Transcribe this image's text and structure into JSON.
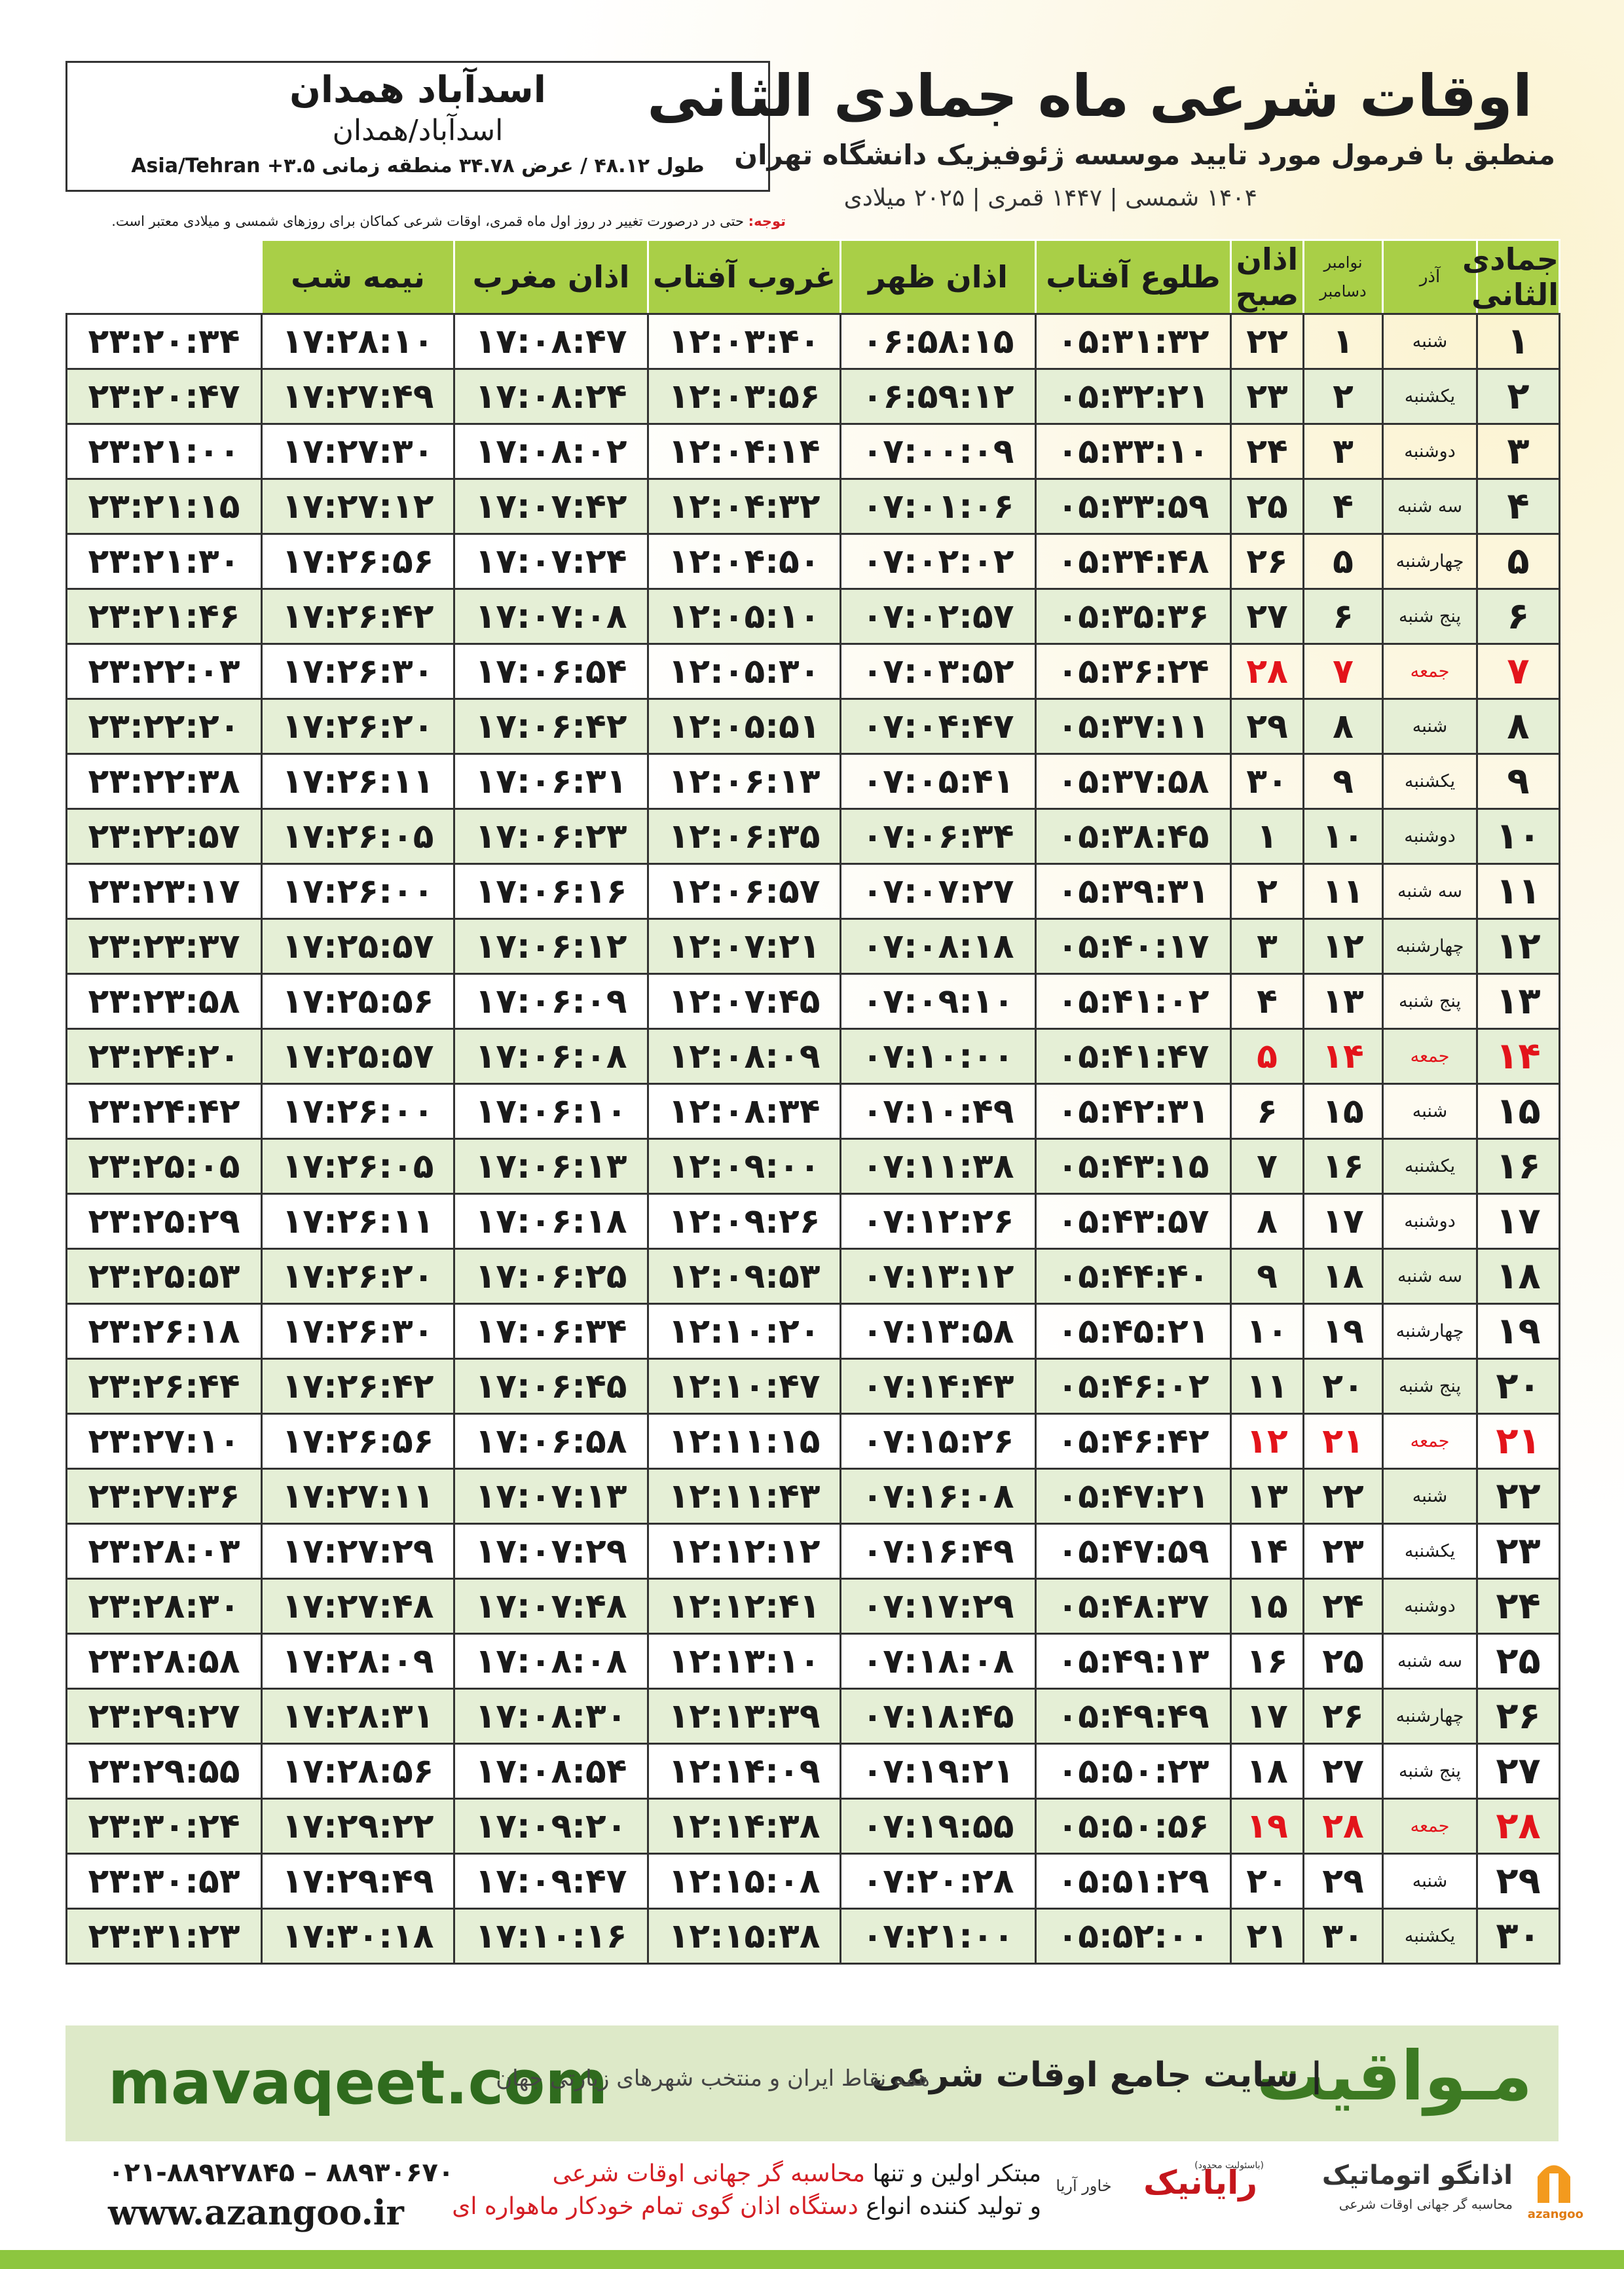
{
  "header": {
    "city": "اسدآباد همدان",
    "region": "اسدآباد/همدان",
    "coordinates": "طول ۴۸.۱۲ / عرض ۳۴.۷۸ منطقه زمانی ۳.۵+ Asia/Tehran",
    "title": "اوقات شرعی ماه جمادی الثانی",
    "subtitle": "منطبق با فرمول مورد تایید موسسه ژئوفیزیک دانشگاه تهران",
    "years": "۱۴۰۴ شمسی | ۱۴۴۷ قمری | ۲۰۲۵ میلادی"
  },
  "note": {
    "label": "توجه:",
    "text": "حتی در درصورت تغییر در روز اول ماه قمری، اوقات شرعی کماکان برای روزهای شمسی و میلادی معتبر است."
  },
  "table": {
    "columns": [
      "جمادی الثانی",
      "آذر",
      [
        "نوامبر",
        "دسامبر"
      ],
      "اذان صبح",
      "طلوع آفتاب",
      "اذان ظهر",
      "غروب آفتاب",
      "اذان مغرب",
      "نیمه شب"
    ],
    "rows": [
      [
        "۱",
        "شنبه",
        "۱",
        "۲۲",
        "۰۵:۳۱:۳۲",
        "۰۶:۵۸:۱۵",
        "۱۲:۰۳:۴۰",
        "۱۷:۰۸:۴۷",
        "۱۷:۲۸:۱۰",
        "۲۳:۲۰:۳۴"
      ],
      [
        "۲",
        "یکشنبه",
        "۲",
        "۲۳",
        "۰۵:۳۲:۲۱",
        "۰۶:۵۹:۱۲",
        "۱۲:۰۳:۵۶",
        "۱۷:۰۸:۲۴",
        "۱۷:۲۷:۴۹",
        "۲۳:۲۰:۴۷"
      ],
      [
        "۳",
        "دوشنبه",
        "۳",
        "۲۴",
        "۰۵:۳۳:۱۰",
        "۰۷:۰۰:۰۹",
        "۱۲:۰۴:۱۴",
        "۱۷:۰۸:۰۲",
        "۱۷:۲۷:۳۰",
        "۲۳:۲۱:۰۰"
      ],
      [
        "۴",
        "سه شنبه",
        "۴",
        "۲۵",
        "۰۵:۳۳:۵۹",
        "۰۷:۰۱:۰۶",
        "۱۲:۰۴:۳۲",
        "۱۷:۰۷:۴۲",
        "۱۷:۲۷:۱۲",
        "۲۳:۲۱:۱۵"
      ],
      [
        "۵",
        "چهارشنبه",
        "۵",
        "۲۶",
        "۰۵:۳۴:۴۸",
        "۰۷:۰۲:۰۲",
        "۱۲:۰۴:۵۰",
        "۱۷:۰۷:۲۴",
        "۱۷:۲۶:۵۶",
        "۲۳:۲۱:۳۰"
      ],
      [
        "۶",
        "پنج شنبه",
        "۶",
        "۲۷",
        "۰۵:۳۵:۳۶",
        "۰۷:۰۲:۵۷",
        "۱۲:۰۵:۱۰",
        "۱۷:۰۷:۰۸",
        "۱۷:۲۶:۴۲",
        "۲۳:۲۱:۴۶"
      ],
      [
        "۷",
        "جمعه",
        "۷",
        "۲۸",
        "۰۵:۳۶:۲۴",
        "۰۷:۰۳:۵۲",
        "۱۲:۰۵:۳۰",
        "۱۷:۰۶:۵۴",
        "۱۷:۲۶:۳۰",
        "۲۳:۲۲:۰۳"
      ],
      [
        "۸",
        "شنبه",
        "۸",
        "۲۹",
        "۰۵:۳۷:۱۱",
        "۰۷:۰۴:۴۷",
        "۱۲:۰۵:۵۱",
        "۱۷:۰۶:۴۲",
        "۱۷:۲۶:۲۰",
        "۲۳:۲۲:۲۰"
      ],
      [
        "۹",
        "یکشنبه",
        "۹",
        "۳۰",
        "۰۵:۳۷:۵۸",
        "۰۷:۰۵:۴۱",
        "۱۲:۰۶:۱۳",
        "۱۷:۰۶:۳۱",
        "۱۷:۲۶:۱۱",
        "۲۳:۲۲:۳۸"
      ],
      [
        "۱۰",
        "دوشنبه",
        "۱۰",
        "۱",
        "۰۵:۳۸:۴۵",
        "۰۷:۰۶:۳۴",
        "۱۲:۰۶:۳۵",
        "۱۷:۰۶:۲۳",
        "۱۷:۲۶:۰۵",
        "۲۳:۲۲:۵۷"
      ],
      [
        "۱۱",
        "سه شنبه",
        "۱۱",
        "۲",
        "۰۵:۳۹:۳۱",
        "۰۷:۰۷:۲۷",
        "۱۲:۰۶:۵۷",
        "۱۷:۰۶:۱۶",
        "۱۷:۲۶:۰۰",
        "۲۳:۲۳:۱۷"
      ],
      [
        "۱۲",
        "چهارشنبه",
        "۱۲",
        "۳",
        "۰۵:۴۰:۱۷",
        "۰۷:۰۸:۱۸",
        "۱۲:۰۷:۲۱",
        "۱۷:۰۶:۱۲",
        "۱۷:۲۵:۵۷",
        "۲۳:۲۳:۳۷"
      ],
      [
        "۱۳",
        "پنج شنبه",
        "۱۳",
        "۴",
        "۰۵:۴۱:۰۲",
        "۰۷:۰۹:۱۰",
        "۱۲:۰۷:۴۵",
        "۱۷:۰۶:۰۹",
        "۱۷:۲۵:۵۶",
        "۲۳:۲۳:۵۸"
      ],
      [
        "۱۴",
        "جمعه",
        "۱۴",
        "۵",
        "۰۵:۴۱:۴۷",
        "۰۷:۱۰:۰۰",
        "۱۲:۰۸:۰۹",
        "۱۷:۰۶:۰۸",
        "۱۷:۲۵:۵۷",
        "۲۳:۲۴:۲۰"
      ],
      [
        "۱۵",
        "شنبه",
        "۱۵",
        "۶",
        "۰۵:۴۲:۳۱",
        "۰۷:۱۰:۴۹",
        "۱۲:۰۸:۳۴",
        "۱۷:۰۶:۱۰",
        "۱۷:۲۶:۰۰",
        "۲۳:۲۴:۴۲"
      ],
      [
        "۱۶",
        "یکشنبه",
        "۱۶",
        "۷",
        "۰۵:۴۳:۱۵",
        "۰۷:۱۱:۳۸",
        "۱۲:۰۹:۰۰",
        "۱۷:۰۶:۱۳",
        "۱۷:۲۶:۰۵",
        "۲۳:۲۵:۰۵"
      ],
      [
        "۱۷",
        "دوشنبه",
        "۱۷",
        "۸",
        "۰۵:۴۳:۵۷",
        "۰۷:۱۲:۲۶",
        "۱۲:۰۹:۲۶",
        "۱۷:۰۶:۱۸",
        "۱۷:۲۶:۱۱",
        "۲۳:۲۵:۲۹"
      ],
      [
        "۱۸",
        "سه شنبه",
        "۱۸",
        "۹",
        "۰۵:۴۴:۴۰",
        "۰۷:۱۳:۱۲",
        "۱۲:۰۹:۵۳",
        "۱۷:۰۶:۲۵",
        "۱۷:۲۶:۲۰",
        "۲۳:۲۵:۵۳"
      ],
      [
        "۱۹",
        "چهارشنبه",
        "۱۹",
        "۱۰",
        "۰۵:۴۵:۲۱",
        "۰۷:۱۳:۵۸",
        "۱۲:۱۰:۲۰",
        "۱۷:۰۶:۳۴",
        "۱۷:۲۶:۳۰",
        "۲۳:۲۶:۱۸"
      ],
      [
        "۲۰",
        "پنج شنبه",
        "۲۰",
        "۱۱",
        "۰۵:۴۶:۰۲",
        "۰۷:۱۴:۴۳",
        "۱۲:۱۰:۴۷",
        "۱۷:۰۶:۴۵",
        "۱۷:۲۶:۴۲",
        "۲۳:۲۶:۴۴"
      ],
      [
        "۲۱",
        "جمعه",
        "۲۱",
        "۱۲",
        "۰۵:۴۶:۴۲",
        "۰۷:۱۵:۲۶",
        "۱۲:۱۱:۱۵",
        "۱۷:۰۶:۵۸",
        "۱۷:۲۶:۵۶",
        "۲۳:۲۷:۱۰"
      ],
      [
        "۲۲",
        "شنبه",
        "۲۲",
        "۱۳",
        "۰۵:۴۷:۲۱",
        "۰۷:۱۶:۰۸",
        "۱۲:۱۱:۴۳",
        "۱۷:۰۷:۱۳",
        "۱۷:۲۷:۱۱",
        "۲۳:۲۷:۳۶"
      ],
      [
        "۲۳",
        "یکشنبه",
        "۲۳",
        "۱۴",
        "۰۵:۴۷:۵۹",
        "۰۷:۱۶:۴۹",
        "۱۲:۱۲:۱۲",
        "۱۷:۰۷:۲۹",
        "۱۷:۲۷:۲۹",
        "۲۳:۲۸:۰۳"
      ],
      [
        "۲۴",
        "دوشنبه",
        "۲۴",
        "۱۵",
        "۰۵:۴۸:۳۷",
        "۰۷:۱۷:۲۹",
        "۱۲:۱۲:۴۱",
        "۱۷:۰۷:۴۸",
        "۱۷:۲۷:۴۸",
        "۲۳:۲۸:۳۰"
      ],
      [
        "۲۵",
        "سه شنبه",
        "۲۵",
        "۱۶",
        "۰۵:۴۹:۱۳",
        "۰۷:۱۸:۰۸",
        "۱۲:۱۳:۱۰",
        "۱۷:۰۸:۰۸",
        "۱۷:۲۸:۰۹",
        "۲۳:۲۸:۵۸"
      ],
      [
        "۲۶",
        "چهارشنبه",
        "۲۶",
        "۱۷",
        "۰۵:۴۹:۴۹",
        "۰۷:۱۸:۴۵",
        "۱۲:۱۳:۳۹",
        "۱۷:۰۸:۳۰",
        "۱۷:۲۸:۳۱",
        "۲۳:۲۹:۲۷"
      ],
      [
        "۲۷",
        "پنج شنبه",
        "۲۷",
        "۱۸",
        "۰۵:۵۰:۲۳",
        "۰۷:۱۹:۲۱",
        "۱۲:۱۴:۰۹",
        "۱۷:۰۸:۵۴",
        "۱۷:۲۸:۵۶",
        "۲۳:۲۹:۵۵"
      ],
      [
        "۲۸",
        "جمعه",
        "۲۸",
        "۱۹",
        "۰۵:۵۰:۵۶",
        "۰۷:۱۹:۵۵",
        "۱۲:۱۴:۳۸",
        "۱۷:۰۹:۲۰",
        "۱۷:۲۹:۲۲",
        "۲۳:۳۰:۲۴"
      ],
      [
        "۲۹",
        "شنبه",
        "۲۹",
        "۲۰",
        "۰۵:۵۱:۲۹",
        "۰۷:۲۰:۲۸",
        "۱۲:۱۵:۰۸",
        "۱۷:۰۹:۴۷",
        "۱۷:۲۹:۴۹",
        "۲۳:۳۰:۵۳"
      ],
      [
        "۳۰",
        "یکشنبه",
        "۳۰",
        "۲۱",
        "۰۵:۵۲:۰۰",
        "۰۷:۲۱:۰۰",
        "۱۲:۱۵:۳۸",
        "۱۷:۱۰:۱۶",
        "۱۷:۳۰:۱۸",
        "۲۳:۳۱:۲۳"
      ]
    ]
  },
  "footer": {
    "brand": "مـواقیت",
    "slogan": "| سایت جامع اوقات شرعی",
    "slogan_detail": "همه نقاط ایران و منتخب شهرهای زیارتی جهان",
    "site": "mavaqeet.com",
    "phone": "۰۲۱-۸۸۹۲۷۸۴۵ – ۸۸۹۳۰۶۷۰",
    "web": "www.azangoo.ir",
    "line1": [
      "مبتکر اولین و تنها",
      "محاسبه گر جهانی اوقات شرعی"
    ],
    "line2": [
      "و تولید کننده انواع",
      "دستگاه اذان گوی تمام خودکار ماهواره ای"
    ],
    "rayanic": "رایانیک",
    "khavar": "خاور آریا",
    "ltd": "(باسئولیت محدود)",
    "azangoo_logo": "اذانگو اتوماتیک",
    "azangoo_sub": "محاسبه گر جهانی اوقات شرعی",
    "azangoo_latin": "azangoo"
  }
}
